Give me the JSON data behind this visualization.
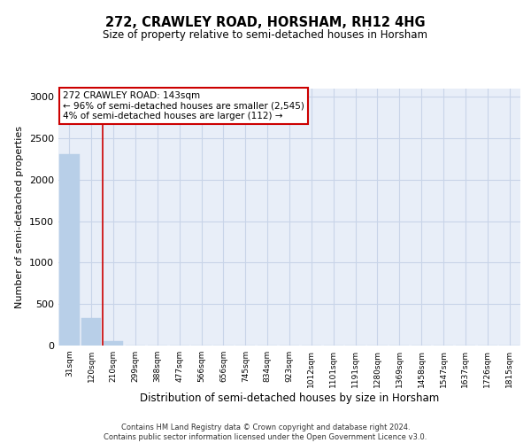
{
  "title": "272, CRAWLEY ROAD, HORSHAM, RH12 4HG",
  "subtitle": "Size of property relative to semi-detached houses in Horsham",
  "xlabel": "Distribution of semi-detached houses by size in Horsham",
  "ylabel": "Number of semi-detached properties",
  "bar_labels": [
    "31sqm",
    "120sqm",
    "210sqm",
    "299sqm",
    "388sqm",
    "477sqm",
    "566sqm",
    "656sqm",
    "745sqm",
    "834sqm",
    "923sqm",
    "1012sqm",
    "1101sqm",
    "1191sqm",
    "1280sqm",
    "1369sqm",
    "1458sqm",
    "1547sqm",
    "1637sqm",
    "1726sqm",
    "1815sqm"
  ],
  "bar_values": [
    2310,
    330,
    55,
    0,
    0,
    0,
    0,
    0,
    0,
    0,
    0,
    0,
    0,
    0,
    0,
    0,
    0,
    0,
    0,
    0,
    0
  ],
  "bar_color": "#b8cfe8",
  "bar_edge_color": "#b8cfe8",
  "grid_color": "#c8d4e8",
  "property_bar_index": 1.5,
  "annotation_text": "272 CRAWLEY ROAD: 143sqm\n← 96% of semi-detached houses are smaller (2,545)\n4% of semi-detached houses are larger (112) →",
  "annotation_box_color": "#ffffff",
  "annotation_border_color": "#cc0000",
  "red_line_color": "#cc0000",
  "ylim": [
    0,
    3100
  ],
  "yticks": [
    0,
    500,
    1000,
    1500,
    2000,
    2500,
    3000
  ],
  "bg_color": "#e8eef8",
  "footer_line1": "Contains HM Land Registry data © Crown copyright and database right 2024.",
  "footer_line2": "Contains public sector information licensed under the Open Government Licence v3.0."
}
